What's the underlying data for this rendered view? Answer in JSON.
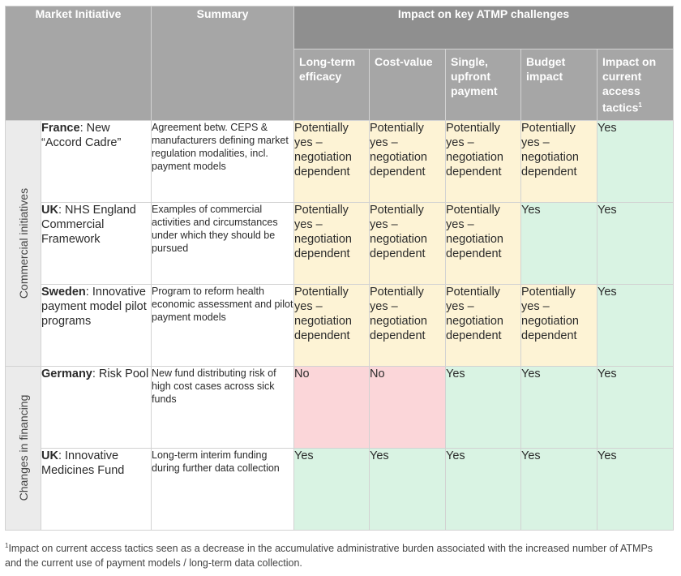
{
  "header": {
    "market_initiative": "Market Initiative",
    "summary": "Summary",
    "impact_group": "Impact on key ATMP challenges",
    "columns": [
      "Long-term efficacy",
      "Cost-value",
      "Single, upfront payment",
      "Budget impact",
      "Impact on current access tactics"
    ],
    "footnote_marker": "1"
  },
  "groups": [
    {
      "label": "Commercial initiatives"
    },
    {
      "label": "Changes in financing"
    }
  ],
  "rows": [
    {
      "country": "France",
      "name": ": New “Accord Cadre”",
      "summary": "Agreement betw. CEPS & manufacturers defining market regulation modalities, incl. payment models",
      "cells": [
        "Potentially yes – negotiation dependent",
        "Potentially yes – negotiation dependent",
        "Potentially yes – negotiation dependent",
        "Potentially yes – negotiation dependent",
        "Yes"
      ]
    },
    {
      "country": "UK",
      "name": ": NHS England Commercial Framework",
      "summary": "Examples of commercial activities and circumstances under which they should be pursued",
      "cells": [
        "Potentially yes – negotiation dependent",
        "Potentially yes – negotiation dependent",
        "Potentially yes – negotiation dependent",
        "Yes",
        "Yes"
      ]
    },
    {
      "country": "Sweden",
      "name": ": Innovative payment model pilot programs",
      "summary": "Program to reform health economic assessment and pilot payment models",
      "cells": [
        "Potentially yes – negotiation dependent",
        "Potentially yes – negotiation dependent",
        "Potentially yes – negotiation dependent",
        "Potentially yes – negotiation dependent",
        "Yes"
      ]
    },
    {
      "country": "Germany",
      "name": ": Risk Pool",
      "summary": "New fund distributing risk of high cost cases across sick funds",
      "cells": [
        "No",
        "No",
        "Yes",
        "Yes",
        "Yes"
      ]
    },
    {
      "country": "UK",
      "name": ": Innovative Medicines Fund",
      "summary": "Long-term interim funding during further data collection",
      "cells": [
        "Yes",
        "Yes",
        "Yes",
        "Yes",
        "Yes"
      ]
    }
  ],
  "footnote": {
    "marker": "1",
    "text": "Impact on current access tactics seen as a decrease in the accumulative administrative burden associated with the increased number of ATMPs and the current use of payment models / long-term data collection."
  },
  "colors": {
    "header_dark": "#8f8f8f",
    "header": "#a6a6a6",
    "potentially": "#fdf3d5",
    "yes": "#d9f3e3",
    "no": "#fbd6d9"
  }
}
